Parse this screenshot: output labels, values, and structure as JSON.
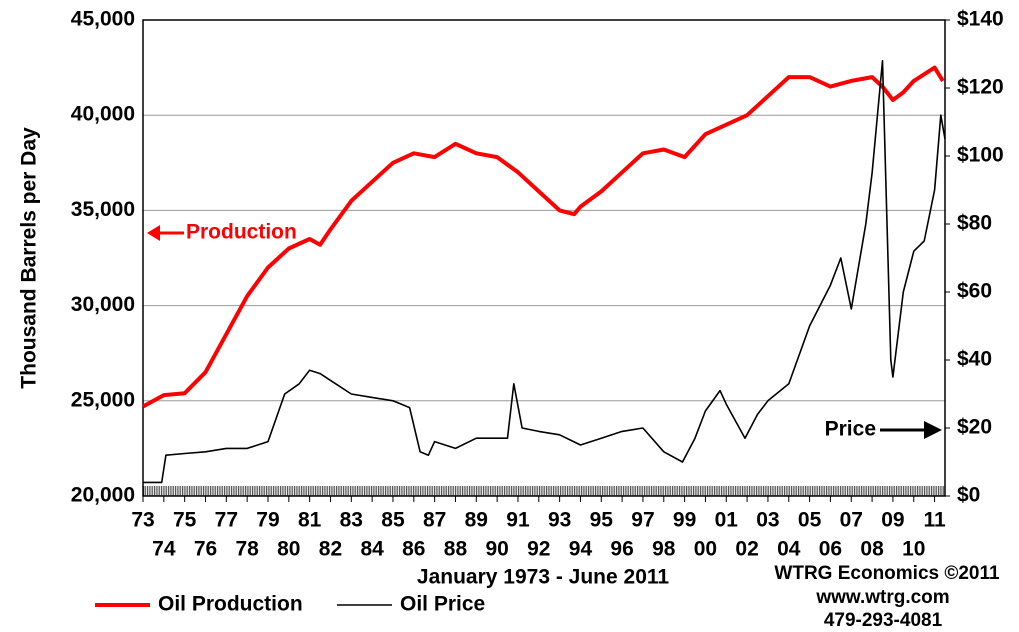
{
  "chart_data": {
    "type": "line",
    "ylabel": "Thousand Barrels per Day",
    "xlim": [
      1973,
      2011.5
    ],
    "xticks": [
      {
        "value": 1973,
        "label": "73"
      },
      {
        "value": 1974,
        "label": "74"
      },
      {
        "value": 1975,
        "label": "75"
      },
      {
        "value": 1976,
        "label": "76"
      },
      {
        "value": 1977,
        "label": "77"
      },
      {
        "value": 1978,
        "label": "78"
      },
      {
        "value": 1979,
        "label": "79"
      },
      {
        "value": 1980,
        "label": "80"
      },
      {
        "value": 1981,
        "label": "81"
      },
      {
        "value": 1982,
        "label": "82"
      },
      {
        "value": 1983,
        "label": "83"
      },
      {
        "value": 1984,
        "label": "84"
      },
      {
        "value": 1985,
        "label": "85"
      },
      {
        "value": 1986,
        "label": "86"
      },
      {
        "value": 1987,
        "label": "87"
      },
      {
        "value": 1988,
        "label": "88"
      },
      {
        "value": 1989,
        "label": "89"
      },
      {
        "value": 1990,
        "label": "90"
      },
      {
        "value": 1991,
        "label": "91"
      },
      {
        "value": 1992,
        "label": "92"
      },
      {
        "value": 1993,
        "label": "93"
      },
      {
        "value": 1994,
        "label": "94"
      },
      {
        "value": 1995,
        "label": "95"
      },
      {
        "value": 1996,
        "label": "96"
      },
      {
        "value": 1997,
        "label": "97"
      },
      {
        "value": 1998,
        "label": "98"
      },
      {
        "value": 1999,
        "label": "99"
      },
      {
        "value": 2000,
        "label": "00"
      },
      {
        "value": 2001,
        "label": "01"
      },
      {
        "value": 2002,
        "label": "02"
      },
      {
        "value": 2003,
        "label": "03"
      },
      {
        "value": 2004,
        "label": "04"
      },
      {
        "value": 2005,
        "label": "05"
      },
      {
        "value": 2006,
        "label": "06"
      },
      {
        "value": 2007,
        "label": "07"
      },
      {
        "value": 2008,
        "label": "08"
      },
      {
        "value": 2009,
        "label": "09"
      },
      {
        "value": 2010,
        "label": "10"
      },
      {
        "value": 2011,
        "label": "11"
      }
    ],
    "ylim": [
      20000,
      45000
    ],
    "yticks": [
      {
        "value": 20000,
        "label": "20,000"
      },
      {
        "value": 25000,
        "label": "25,000"
      },
      {
        "value": 30000,
        "label": "30,000"
      },
      {
        "value": 35000,
        "label": "35,000"
      },
      {
        "value": 40000,
        "label": "40,000"
      },
      {
        "value": 45000,
        "label": "45,000"
      }
    ],
    "y2lim": [
      0,
      140
    ],
    "y2ticks": [
      {
        "value": 0,
        "label": "$0"
      },
      {
        "value": 20,
        "label": "$20"
      },
      {
        "value": 40,
        "label": "$40"
      },
      {
        "value": 60,
        "label": "$60"
      },
      {
        "value": 80,
        "label": "$80"
      },
      {
        "value": 100,
        "label": "$100"
      },
      {
        "value": 120,
        "label": "$120"
      },
      {
        "value": 140,
        "label": "$140"
      }
    ],
    "grid": true,
    "series": [
      {
        "name": "Oil Production",
        "color": "#ff0000",
        "x": [
          1973,
          1974,
          1975,
          1976,
          1977,
          1978,
          1979,
          1980,
          1981,
          1981.5,
          1982,
          1983,
          1984,
          1985,
          1986,
          1987,
          1988,
          1989,
          1990,
          1991,
          1992,
          1993,
          1993.7,
          1994,
          1995,
          1996,
          1997,
          1998,
          1999,
          2000,
          2001,
          2002,
          2003,
          2004,
          2005,
          2006,
          2007,
          2008,
          2008.5,
          2009,
          2009.5,
          2010,
          2011,
          2011.4
        ],
        "values": [
          24700,
          25300,
          25400,
          26500,
          28500,
          30500,
          32000,
          33000,
          33500,
          33200,
          34000,
          35500,
          36500,
          37500,
          38000,
          37800,
          38500,
          38000,
          37800,
          37000,
          36000,
          35000,
          34800,
          35200,
          36000,
          37000,
          38000,
          38200,
          37800,
          39000,
          39500,
          40000,
          41000,
          42000,
          42000,
          41500,
          41800,
          42000,
          41500,
          40800,
          41200,
          41800,
          42500,
          41800
        ]
      },
      {
        "name": "Oil Price",
        "color": "#000000",
        "axis": "y2",
        "x": [
          1973,
          1973.9,
          1974.1,
          1975,
          1976,
          1977,
          1978,
          1979,
          1979.8,
          1980.5,
          1981,
          1981.5,
          1982,
          1983,
          1984,
          1985,
          1985.8,
          1986.3,
          1986.7,
          1987,
          1988,
          1989,
          1990.5,
          1990.8,
          1991.2,
          1992,
          1993,
          1994,
          1995,
          1996,
          1997,
          1998,
          1998.9,
          1999.5,
          2000,
          2000.7,
          2001,
          2001.9,
          2002.5,
          2003,
          2004,
          2005,
          2006,
          2006.5,
          2007,
          2007.7,
          2008,
          2008.5,
          2008.9,
          2009,
          2009.5,
          2010,
          2010.5,
          2011,
          2011.3,
          2011.5
        ],
        "values": [
          4,
          4,
          12,
          12.5,
          13,
          14,
          14,
          16,
          30,
          33,
          37,
          36,
          34,
          30,
          29,
          28,
          26,
          13,
          12,
          16,
          14,
          17,
          17,
          33,
          20,
          19,
          18,
          15,
          17,
          19,
          20,
          13,
          10,
          17,
          25,
          31,
          27,
          17,
          24,
          28,
          33,
          50,
          62,
          70,
          55,
          80,
          95,
          128,
          40,
          35,
          60,
          72,
          75,
          90,
          112,
          105
        ]
      }
    ],
    "annotations": [
      "Production",
      "Price",
      "January 1973 - June 2011",
      "WTRG Economics  ©2011",
      "www.wtrg.com",
      "479-293-4081"
    ]
  }
}
